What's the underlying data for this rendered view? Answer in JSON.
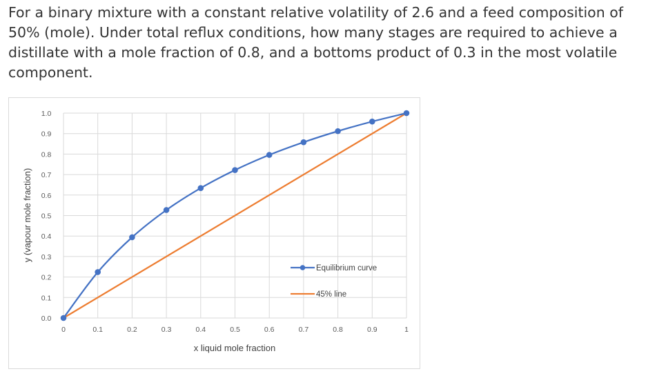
{
  "question": {
    "text": "For a binary mixture with a constant relative volatility of 2.6 and a feed composition of 50% (mole). Under total reflux conditions, how many stages are required to achieve a distillate with a mole fraction of 0.8, and a bottoms product of 0.3 in the most volatile component."
  },
  "chart_data": {
    "type": "line",
    "xlabel": "x liquid mole fraction",
    "ylabel": "y (vapour mole fraction)",
    "xlim": [
      0,
      1
    ],
    "ylim": [
      0,
      1
    ],
    "x_ticks": [
      "0",
      "0.1",
      "0.2",
      "0.3",
      "0.4",
      "0.5",
      "0.6",
      "0.7",
      "0.8",
      "0.9",
      "1"
    ],
    "y_ticks": [
      "0.0",
      "0.1",
      "0.2",
      "0.3",
      "0.4",
      "0.5",
      "0.6",
      "0.7",
      "0.8",
      "0.9",
      "1.0"
    ],
    "grid": "vertical and horizontal, light gray",
    "legend_position": "right",
    "series": [
      {
        "name": "Equilibrium curve",
        "color": "#4472C4",
        "markers": true,
        "x": [
          0,
          0.1,
          0.2,
          0.3,
          0.4,
          0.5,
          0.6,
          0.7,
          0.8,
          0.9,
          1
        ],
        "y": [
          0,
          0.224,
          0.394,
          0.527,
          0.634,
          0.722,
          0.796,
          0.858,
          0.912,
          0.959,
          1
        ]
      },
      {
        "name": "45% line",
        "color": "#ED7D31",
        "markers": false,
        "x": [
          0,
          1
        ],
        "y": [
          0,
          1
        ]
      }
    ]
  }
}
